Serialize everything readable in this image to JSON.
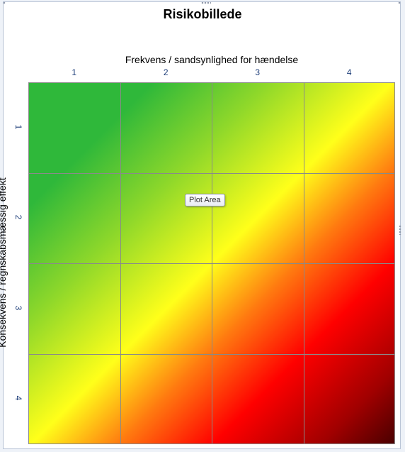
{
  "chart": {
    "title": "Risikobillede",
    "x_title": "Frekvens / sandsynlighed  for hændelse",
    "y_title": "Konsekvens / regnskabsmæssig  effekt",
    "x_ticks": [
      "1",
      "2",
      "3",
      "4"
    ],
    "y_ticks": [
      "1",
      "2",
      "3",
      "4"
    ],
    "tooltip": "Plot Area"
  },
  "chart_data": {
    "type": "heatmap",
    "title": "Risikobillede",
    "xlabel": "Frekvens / sandsynlighed  for hændelse",
    "ylabel": "Konsekvens / regnskabsmæssig  effekt",
    "x_categories": [
      "1",
      "2",
      "3",
      "4"
    ],
    "y_categories": [
      "1",
      "2",
      "3",
      "4"
    ],
    "grid": true,
    "colors": [
      "#2fb83a",
      "#8fd82a",
      "#ffff1a",
      "#ff7a10",
      "#ff0000",
      "#4a0000"
    ]
  }
}
